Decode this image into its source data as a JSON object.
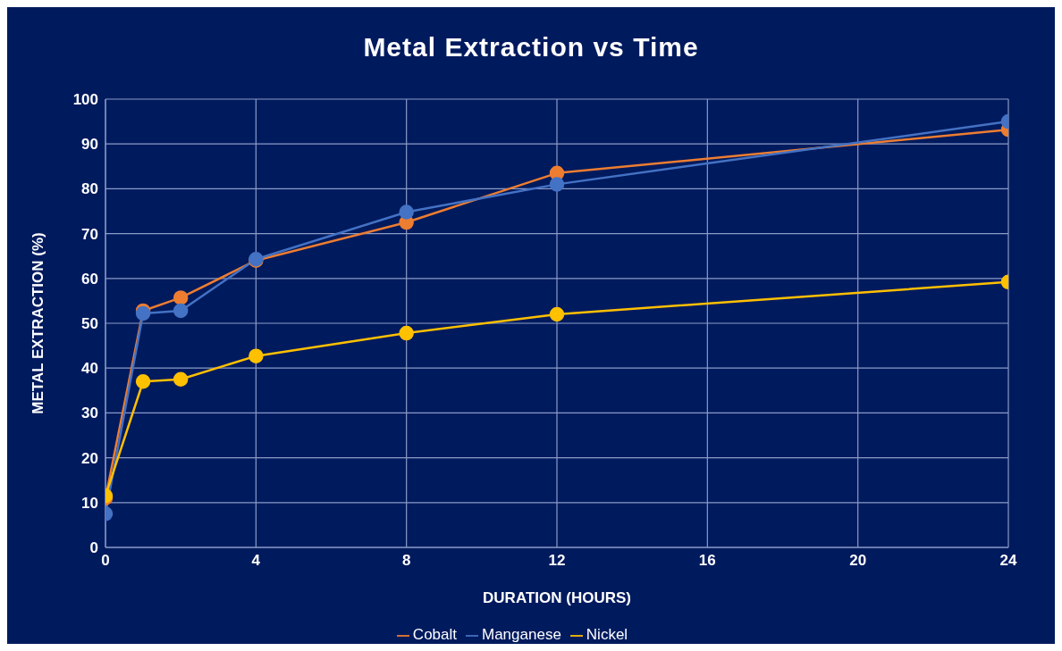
{
  "chart_data": {
    "type": "line",
    "title": "Metal Extraction vs Time",
    "xlabel": "DURATION (HOURS)",
    "ylabel": "METAL EXTRACTION (%)",
    "x": [
      0,
      1,
      2,
      4,
      8,
      12,
      24
    ],
    "series": [
      {
        "name": "Cobalt",
        "color": "#ed7d31",
        "values": [
          11,
          52.8,
          55.7,
          64,
          72.5,
          83.5,
          93.2
        ]
      },
      {
        "name": "Manganese",
        "color": "#4472c4",
        "values": [
          7.5,
          52.2,
          52.8,
          64.3,
          74.8,
          81,
          95
        ]
      },
      {
        "name": "Nickel",
        "color": "#ffc000",
        "values": [
          11.5,
          37,
          37.5,
          42.7,
          47.8,
          52,
          59.2
        ]
      }
    ],
    "xlim": [
      0,
      24
    ],
    "xticks": [
      0,
      4,
      8,
      12,
      16,
      20,
      24
    ],
    "ylim": [
      0,
      100
    ],
    "yticks": [
      0,
      10,
      20,
      30,
      40,
      50,
      60,
      70,
      80,
      90,
      100
    ],
    "grid": true,
    "legend": "bottom",
    "marker": "circle",
    "line_style": "solid"
  }
}
